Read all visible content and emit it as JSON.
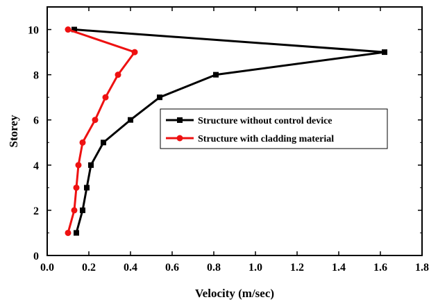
{
  "chart_data": {
    "type": "line",
    "title": "",
    "xlabel": "Velocity (m/sec)",
    "ylabel": "Storey",
    "xlim": [
      0.0,
      1.8
    ],
    "ylim": [
      0,
      11
    ],
    "xticks": [
      0.0,
      0.2,
      0.4,
      0.6,
      0.8,
      1.0,
      1.2,
      1.4,
      1.6,
      1.8
    ],
    "xtick_labels": [
      "0.0",
      "0.2",
      "0.4",
      "0.6",
      "0.8",
      "1.0",
      "1.2",
      "1.4",
      "1.6",
      "1.8"
    ],
    "yticks": [
      0,
      2,
      4,
      6,
      8,
      10
    ],
    "ytick_labels": [
      "0",
      "2",
      "4",
      "6",
      "8",
      "10"
    ],
    "grid": false,
    "legend_position": "center-right",
    "series": [
      {
        "name": "Structure without control device",
        "color": "#000000",
        "marker": "square",
        "x": [
          0.14,
          0.17,
          0.19,
          0.21,
          0.27,
          0.4,
          0.54,
          0.81,
          1.62,
          0.13
        ],
        "y": [
          1,
          2,
          3,
          4,
          5,
          6,
          7,
          8,
          9,
          10
        ]
      },
      {
        "name": "Structure with cladding material",
        "color": "#ee1111",
        "marker": "circle",
        "x": [
          0.1,
          0.13,
          0.14,
          0.15,
          0.17,
          0.23,
          0.28,
          0.34,
          0.42,
          0.1
        ],
        "y": [
          1,
          2,
          3,
          4,
          5,
          6,
          7,
          8,
          9,
          10
        ]
      }
    ]
  }
}
